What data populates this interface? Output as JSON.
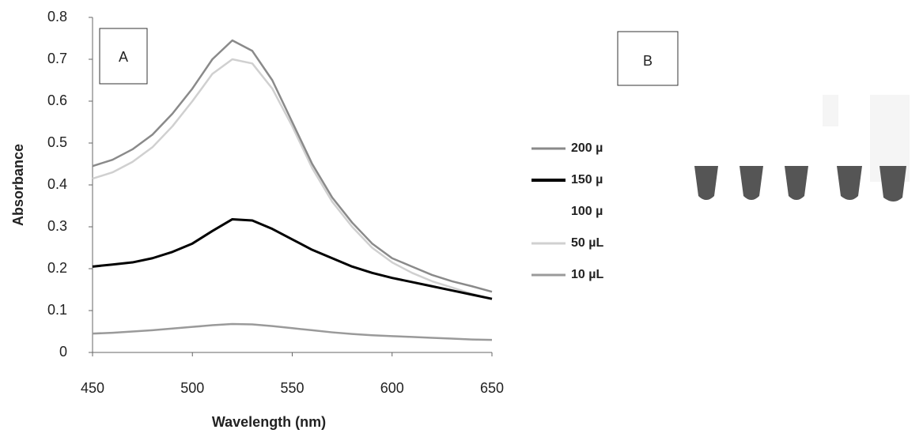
{
  "chart_data": {
    "type": "line",
    "x_label": "Wavelength (nm)",
    "y_label": "Absorbance",
    "annotations": [
      "A",
      "B"
    ],
    "x": [
      450,
      460,
      470,
      480,
      490,
      500,
      510,
      520,
      530,
      540,
      550,
      560,
      570,
      580,
      590,
      600,
      610,
      620,
      630,
      640,
      650
    ],
    "series": [
      {
        "name": "200 µ",
        "color": "#8a8a8a",
        "values": [
          0.445,
          0.46,
          0.485,
          0.52,
          0.57,
          0.63,
          0.7,
          0.745,
          0.72,
          0.65,
          0.55,
          0.45,
          0.37,
          0.31,
          0.26,
          0.225,
          0.205,
          0.185,
          0.17,
          0.158,
          0.145
        ]
      },
      {
        "name": "150 µ",
        "color": "#000000",
        "values": [
          0.205,
          0.21,
          0.215,
          0.225,
          0.24,
          0.26,
          0.29,
          0.318,
          0.315,
          0.295,
          0.27,
          0.245,
          0.225,
          0.205,
          0.19,
          0.178,
          0.168,
          0.158,
          0.148,
          0.138,
          0.128
        ]
      },
      {
        "name": "100 µ",
        "color": "#ffffff",
        "values": [
          null,
          null,
          null,
          null,
          null,
          null,
          null,
          null,
          null,
          null,
          null,
          null,
          null,
          null,
          null,
          null,
          null,
          null,
          null,
          null,
          null
        ]
      },
      {
        "name": "50 µL",
        "color": "#d0d0d0",
        "values": [
          0.415,
          0.43,
          0.455,
          0.49,
          0.54,
          0.6,
          0.665,
          0.7,
          0.69,
          0.63,
          0.54,
          0.44,
          0.36,
          0.3,
          0.25,
          0.215,
          0.19,
          0.17,
          0.155,
          0.14,
          0.128
        ]
      },
      {
        "name": "10 µL",
        "color": "#9a9a9a",
        "values": [
          0.045,
          0.047,
          0.05,
          0.053,
          0.057,
          0.061,
          0.065,
          0.068,
          0.067,
          0.063,
          0.058,
          0.053,
          0.048,
          0.044,
          0.041,
          0.039,
          0.037,
          0.035,
          0.033,
          0.031,
          0.03
        ]
      }
    ],
    "xlim": [
      450,
      650
    ],
    "xticks": [
      450,
      500,
      550,
      600,
      650
    ],
    "ylim": [
      0,
      0.8
    ],
    "yticks": [
      0,
      0.1,
      0.2,
      0.3,
      0.4,
      0.5,
      0.6,
      0.7,
      0.8
    ]
  }
}
